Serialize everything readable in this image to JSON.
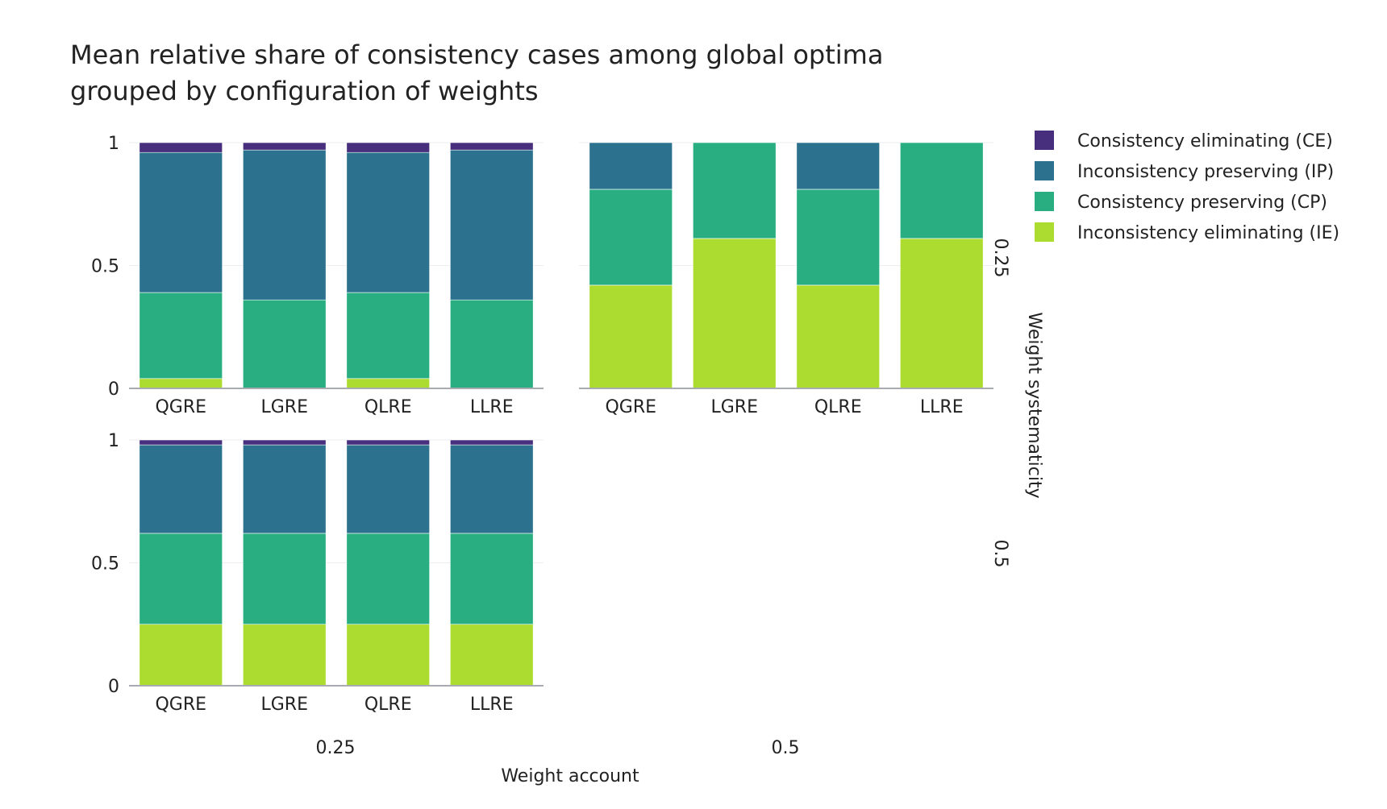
{
  "title_lines": [
    "Mean relative share of consistency cases among global optima",
    "grouped by configuration of weights"
  ],
  "x_axis_title": "Weight account",
  "y_axis_title": "Weight systematicity",
  "column_labels": [
    "0.25",
    "0.5"
  ],
  "row_labels": [
    "0.25",
    "0.5"
  ],
  "colors": {
    "CE": "#472f7d",
    "IP": "#2c728e",
    "CP": "#28ae80",
    "IE": "#addc30",
    "grid": "#ebedf1",
    "axis_line": "#a8abb2"
  },
  "chart_data": {
    "type": "bar",
    "stacked": true,
    "categories": [
      "QGRE",
      "LGRE",
      "QLRE",
      "LLRE"
    ],
    "ylim": [
      0,
      1
    ],
    "yticks": [
      0,
      0.5,
      1
    ],
    "ytick_labels": [
      "0",
      "0.5",
      "1"
    ],
    "legend": [
      {
        "key": "CE",
        "label": "Consistency eliminating (CE)"
      },
      {
        "key": "IP",
        "label": "Inconsistency preserving (IP)"
      },
      {
        "key": "CP",
        "label": "Consistency preserving (CP)"
      },
      {
        "key": "IE",
        "label": "Inconsistency eliminating (IE)"
      }
    ],
    "legend_position": "top-right",
    "stack_order_bottom_to_top": [
      "IE",
      "CP",
      "IP",
      "CE"
    ],
    "panels": [
      {
        "weight_account": "0.25",
        "weight_systematicity": "0.25",
        "series": [
          {
            "key": "IE",
            "values": [
              0.04,
              0.0,
              0.04,
              0.0
            ]
          },
          {
            "key": "CP",
            "values": [
              0.35,
              0.36,
              0.35,
              0.36
            ]
          },
          {
            "key": "IP",
            "values": [
              0.57,
              0.61,
              0.57,
              0.61
            ]
          },
          {
            "key": "CE",
            "values": [
              0.04,
              0.03,
              0.04,
              0.03
            ]
          }
        ]
      },
      {
        "weight_account": "0.5",
        "weight_systematicity": "0.25",
        "series": [
          {
            "key": "IE",
            "values": [
              0.42,
              0.61,
              0.42,
              0.61
            ]
          },
          {
            "key": "CP",
            "values": [
              0.39,
              0.39,
              0.39,
              0.39
            ]
          },
          {
            "key": "IP",
            "values": [
              0.19,
              0.0,
              0.19,
              0.0
            ]
          },
          {
            "key": "CE",
            "values": [
              0.0,
              0.0,
              0.0,
              0.0
            ]
          }
        ]
      },
      {
        "weight_account": "0.25",
        "weight_systematicity": "0.5",
        "series": [
          {
            "key": "IE",
            "values": [
              0.25,
              0.25,
              0.25,
              0.25
            ]
          },
          {
            "key": "CP",
            "values": [
              0.37,
              0.37,
              0.37,
              0.37
            ]
          },
          {
            "key": "IP",
            "values": [
              0.36,
              0.36,
              0.36,
              0.36
            ]
          },
          {
            "key": "CE",
            "values": [
              0.02,
              0.02,
              0.02,
              0.02
            ]
          }
        ]
      }
    ]
  }
}
